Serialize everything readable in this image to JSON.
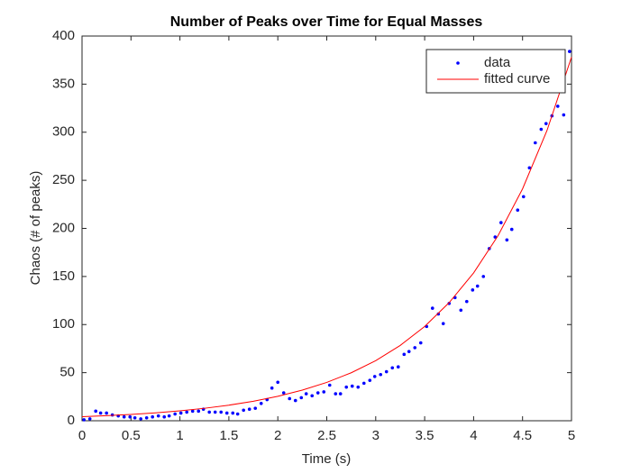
{
  "chart_data": {
    "type": "line",
    "title": "Number of Peaks over Time for Equal Masses",
    "x_label": "Time (s)",
    "y_label": "Chaos (# of peaks)",
    "xlim": [
      0,
      5
    ],
    "xticks": [
      0,
      0.5,
      1,
      1.5,
      2,
      2.5,
      3,
      3.5,
      4,
      4.5,
      5
    ],
    "ylim": [
      0,
      400
    ],
    "yticks": [
      0,
      50,
      100,
      150,
      200,
      250,
      300,
      350,
      400
    ],
    "grid": false,
    "legend": "upper right",
    "series": [
      {
        "name": "data",
        "color": "#0000ff",
        "style": "points",
        "x": [
          0.02,
          0.08,
          0.14,
          0.19,
          0.25,
          0.31,
          0.37,
          0.43,
          0.49,
          0.54,
          0.6,
          0.66,
          0.72,
          0.78,
          0.84,
          0.89,
          0.95,
          1.01,
          1.07,
          1.13,
          1.19,
          1.24,
          1.3,
          1.36,
          1.42,
          1.48,
          1.54,
          1.59,
          1.65,
          1.71,
          1.77,
          1.83,
          1.89,
          1.94,
          2.0,
          2.06,
          2.12,
          2.18,
          2.24,
          2.29,
          2.35,
          2.41,
          2.47,
          2.53,
          2.59,
          2.64,
          2.7,
          2.76,
          2.82,
          2.88,
          2.94,
          2.99,
          3.05,
          3.11,
          3.17,
          3.23,
          3.29,
          3.34,
          3.4,
          3.46,
          3.52,
          3.58,
          3.64,
          3.69,
          3.75,
          3.81,
          3.87,
          3.93,
          3.99,
          4.04,
          4.1,
          4.16,
          4.22,
          4.28,
          4.34,
          4.39,
          4.45,
          4.51,
          4.57,
          4.63,
          4.69,
          4.74,
          4.8,
          4.86,
          4.92,
          4.98
        ],
        "values": [
          1,
          2,
          10,
          8,
          8,
          6,
          5,
          4,
          4,
          3,
          2,
          3,
          4,
          5,
          4,
          5,
          7,
          8,
          9,
          10,
          10,
          12,
          9,
          9,
          9,
          8,
          8,
          7,
          11,
          12,
          13,
          18,
          22,
          34,
          40,
          29,
          23,
          21,
          24,
          28,
          26,
          29,
          30,
          37,
          28,
          28,
          35,
          36,
          35,
          39,
          42,
          46,
          48,
          51,
          55,
          56,
          69,
          72,
          76,
          81,
          98,
          117,
          111,
          101,
          122,
          128,
          115,
          124,
          136,
          140,
          150,
          179,
          191,
          206,
          188,
          199,
          219,
          233,
          263,
          289,
          303,
          309,
          317,
          327,
          318,
          384
        ]
      },
      {
        "name": "fitted curve",
        "color": "#ff0000",
        "style": "line",
        "x": [
          0,
          0.25,
          0.5,
          0.75,
          1,
          1.25,
          1.5,
          1.75,
          2,
          2.25,
          2.5,
          2.75,
          3,
          3.25,
          3.5,
          3.75,
          4,
          4.25,
          4.5,
          4.75,
          5
        ],
        "values": [
          4.2,
          5.26,
          6.59,
          8.25,
          10.33,
          12.94,
          16.2,
          20.29,
          25.41,
          31.82,
          39.85,
          49.9,
          62.5,
          78.3,
          98.0,
          122.8,
          153.7,
          192.5,
          241.1,
          301.9,
          378.1
        ]
      }
    ]
  }
}
